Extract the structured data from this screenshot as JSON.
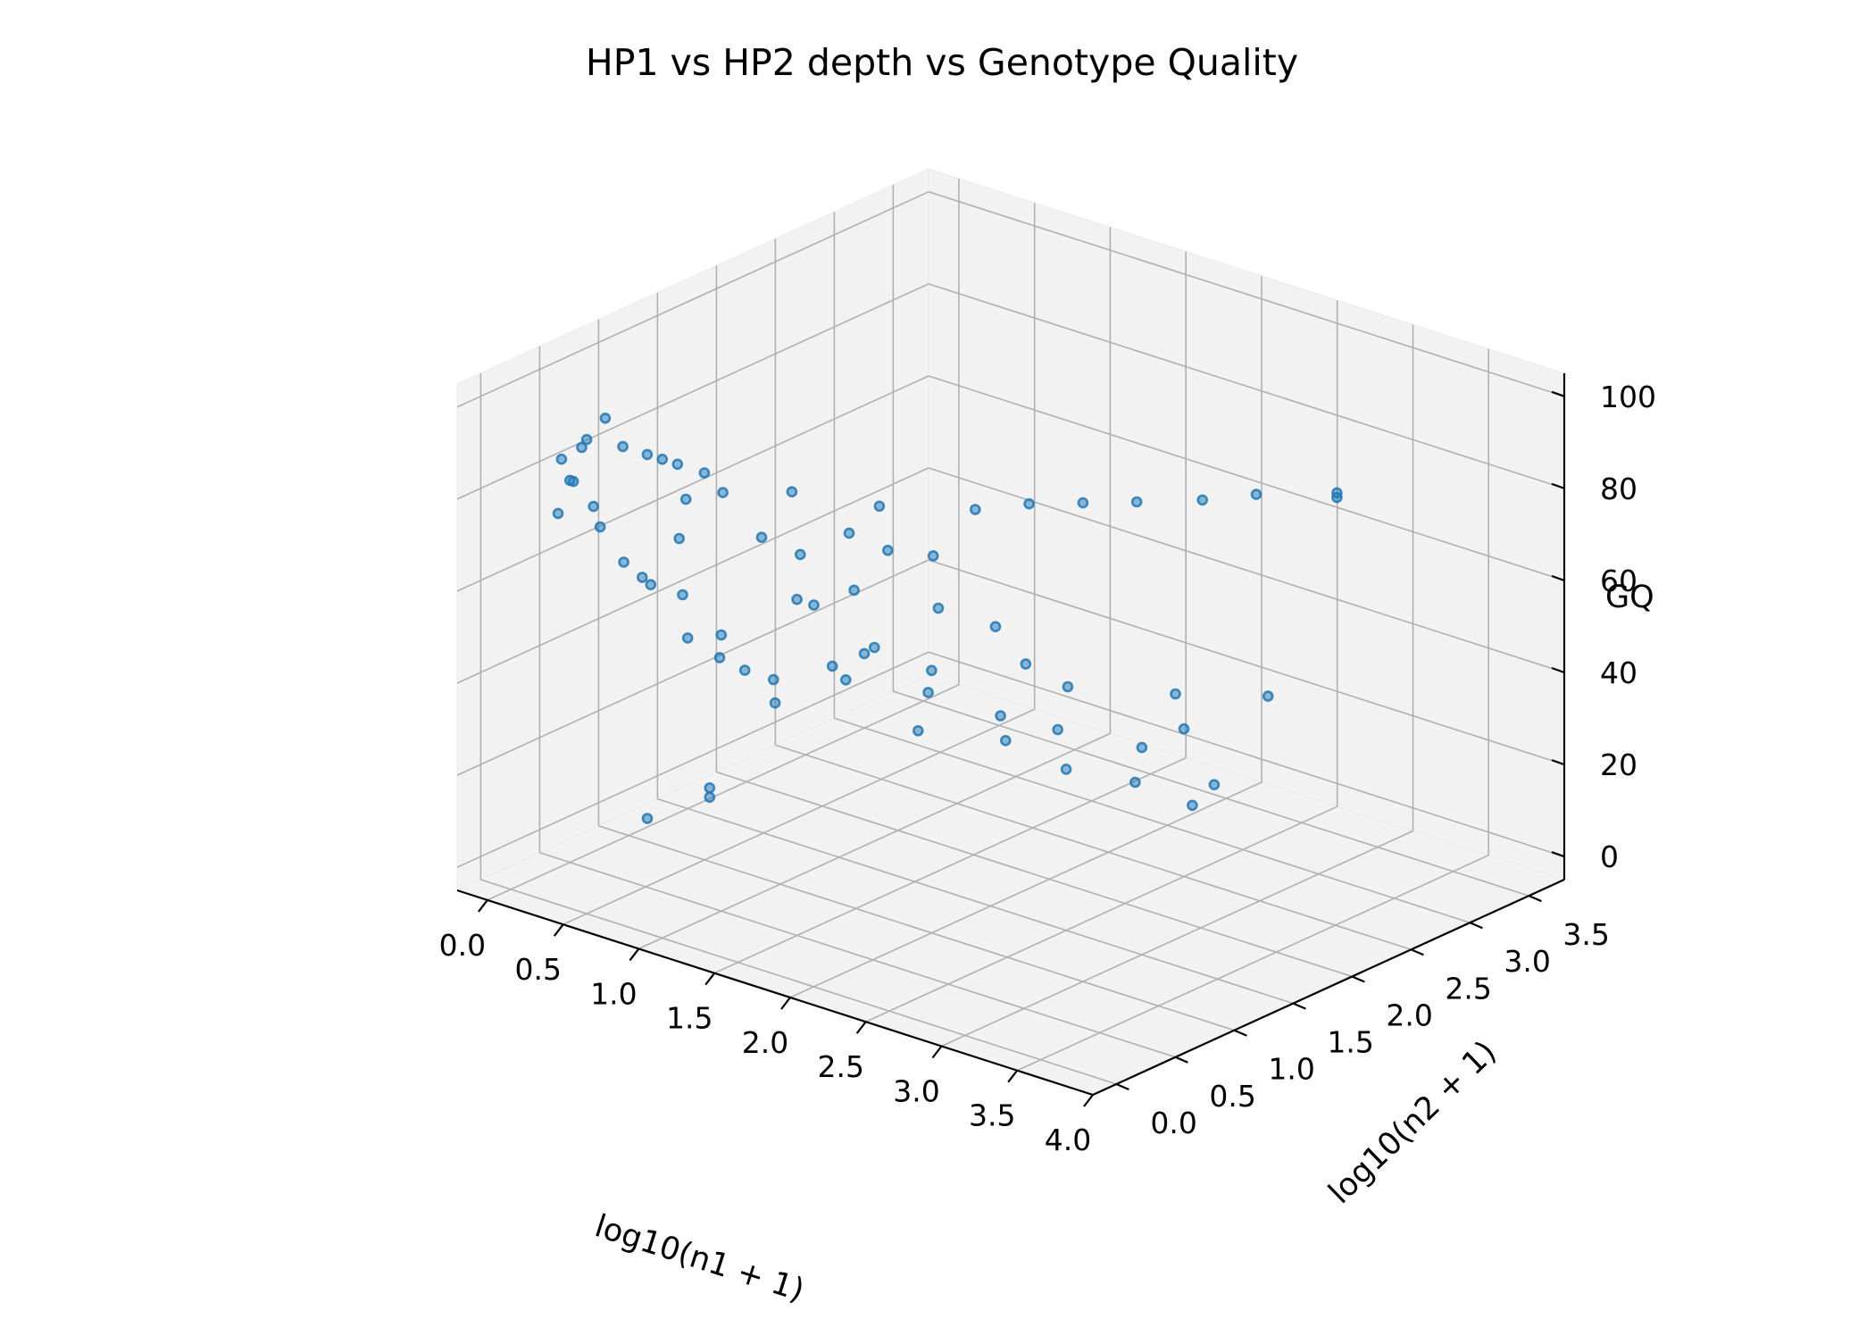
{
  "chart_data": {
    "type": "scatter3d",
    "title": "HP1 vs HP2 depth vs Genotype Quality",
    "xlabel": "log10(n1 + 1)",
    "ylabel": "log10(n2 + 1)",
    "zlabel": "GQ",
    "xlim": [
      -0.2,
      4.0
    ],
    "ylim": [
      -0.2,
      3.8
    ],
    "zlim": [
      -5,
      105
    ],
    "xticks": [
      "0.0",
      "0.5",
      "1.0",
      "1.5",
      "2.0",
      "2.5",
      "3.0",
      "3.5",
      "4.0"
    ],
    "yticks": [
      "0.0",
      "0.5",
      "1.0",
      "1.5",
      "2.0",
      "2.5",
      "3.0",
      "3.5"
    ],
    "zticks": [
      "0",
      "20",
      "40",
      "60",
      "80",
      "100"
    ],
    "grid": true,
    "marker_color": "#1f77b4",
    "pane_color": "#f2f2f2",
    "points": [
      [
        0.9,
        0.0,
        99
      ],
      [
        1.0,
        0.0,
        99
      ],
      [
        1.1,
        0.0,
        99
      ],
      [
        0.7,
        0.05,
        98
      ],
      [
        1.2,
        0.1,
        97
      ],
      [
        0.5,
        0.0,
        98
      ],
      [
        2.2,
        0.3,
        98
      ],
      [
        2.6,
        0.6,
        98
      ],
      [
        2.8,
        0.8,
        99
      ],
      [
        3.0,
        1.0,
        99
      ],
      [
        3.2,
        1.2,
        99
      ],
      [
        3.4,
        1.5,
        98
      ],
      [
        3.6,
        1.7,
        99
      ],
      [
        3.9,
        2.0,
        99
      ],
      [
        3.9,
        2.0,
        98
      ],
      [
        1.7,
        0.2,
        97
      ],
      [
        1.4,
        0.0,
        96
      ],
      [
        0.3,
        1.3,
        5
      ],
      [
        0.3,
        1.3,
        3
      ],
      [
        0.2,
        0.9,
        2
      ],
      [
        1.5,
        0.2,
        85
      ],
      [
        2.4,
        0.5,
        87
      ],
      [
        1.6,
        0.4,
        80
      ],
      [
        2.0,
        0.3,
        90
      ],
      [
        2.1,
        0.5,
        85
      ],
      [
        1.8,
        0.6,
        72
      ],
      [
        1.5,
        0.5,
        68
      ],
      [
        2.2,
        0.8,
        70
      ],
      [
        2.5,
        0.9,
        68
      ],
      [
        1.3,
        0.9,
        60
      ],
      [
        1.7,
        0.9,
        55
      ],
      [
        2.0,
        1.0,
        52
      ],
      [
        1.0,
        0.7,
        45
      ],
      [
        1.4,
        1.2,
        47
      ],
      [
        1.9,
        1.1,
        45
      ],
      [
        2.3,
        1.2,
        43
      ],
      [
        2.6,
        1.3,
        42
      ],
      [
        3.0,
        1.5,
        40
      ],
      [
        3.2,
        1.6,
        45
      ],
      [
        3.4,
        1.6,
        35
      ],
      [
        0.6,
        1.0,
        40
      ],
      [
        0.8,
        1.2,
        35
      ],
      [
        1.2,
        1.3,
        38
      ],
      [
        1.6,
        1.4,
        30
      ],
      [
        2.1,
        1.5,
        32
      ],
      [
        2.5,
        1.5,
        30
      ],
      [
        2.8,
        1.7,
        28
      ],
      [
        3.1,
        1.8,
        25
      ],
      [
        0.4,
        0.6,
        60
      ],
      [
        0.2,
        0.5,
        70
      ],
      [
        0.0,
        0.4,
        72
      ],
      [
        0.0,
        0.6,
        84
      ],
      [
        0.0,
        0.8,
        88
      ],
      [
        0.1,
        0.3,
        86
      ],
      [
        0.1,
        0.4,
        80
      ],
      [
        0.0,
        0.5,
        78
      ],
      [
        0.0,
        0.7,
        70
      ],
      [
        0.2,
        0.7,
        60
      ],
      [
        0.3,
        0.8,
        55
      ],
      [
        1.0,
        0.5,
        55
      ],
      [
        1.2,
        0.7,
        40
      ],
      [
        0.9,
        0.3,
        65
      ],
      [
        0.7,
        0.6,
        50
      ],
      [
        1.5,
        0.8,
        50
      ],
      [
        2.7,
        0.9,
        62
      ],
      [
        2.9,
        1.0,
        58
      ],
      [
        3.3,
        1.4,
        56
      ],
      [
        3.6,
        1.8,
        54
      ],
      [
        0.8,
        0.4,
        75
      ],
      [
        1.0,
        0.2,
        88
      ]
    ]
  }
}
